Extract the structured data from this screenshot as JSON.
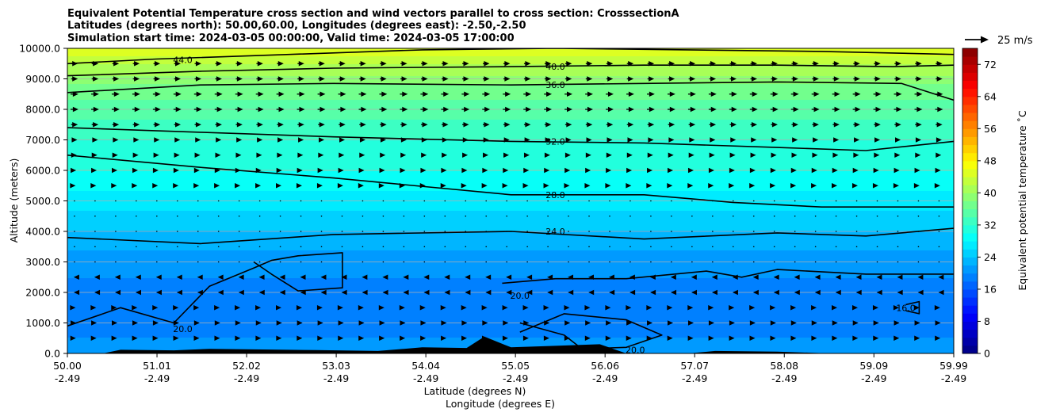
{
  "chart_data": {
    "type": "heatmap",
    "title_lines": [
      "Equivalent Potential Temperature cross section and wind vectors parallel to cross section: CrosssectionA",
      "Latitudes (degrees north): 50.00,60.00, Longitudes (degrees east): -2.50,-2.50",
      "Simulation start time: 2024-03-05 00:00:00, Valid time: 2024-03-05 17:00:00"
    ],
    "xlabel_line1": "Latitude (degrees N)",
    "xlabel_line2": "Longitude (degrees E)",
    "ylabel": "Altitude (meters)",
    "colorbar_label": "Equivalent potential temperature ˚C",
    "quiver_key_label": "25 m/s",
    "x_ticks": [
      {
        "lat": "50.00",
        "lon": "-2.49"
      },
      {
        "lat": "51.01",
        "lon": "-2.49"
      },
      {
        "lat": "52.02",
        "lon": "-2.49"
      },
      {
        "lat": "53.03",
        "lon": "-2.49"
      },
      {
        "lat": "54.04",
        "lon": "-2.49"
      },
      {
        "lat": "55.05",
        "lon": "-2.49"
      },
      {
        "lat": "56.06",
        "lon": "-2.49"
      },
      {
        "lat": "57.07",
        "lon": "-2.49"
      },
      {
        "lat": "58.08",
        "lon": "-2.49"
      },
      {
        "lat": "59.09",
        "lon": "-2.49"
      },
      {
        "lat": "59.99",
        "lon": "-2.49"
      }
    ],
    "x_tick_values": [
      50.0,
      51.01,
      52.02,
      53.03,
      54.04,
      55.05,
      56.06,
      57.07,
      58.08,
      59.09,
      59.99
    ],
    "xlim": [
      50.0,
      59.99
    ],
    "y_ticks": [
      "0.0",
      "1000.0",
      "2000.0",
      "3000.0",
      "4000.0",
      "5000.0",
      "6000.0",
      "7000.0",
      "8000.0",
      "9000.0",
      "10000.0"
    ],
    "ylim": [
      0,
      10000
    ],
    "grid": "horizontal",
    "colorbar_ticks": [
      "0",
      "8",
      "16",
      "24",
      "32",
      "40",
      "48",
      "56",
      "64",
      "72"
    ],
    "colorbar_range": [
      0,
      76
    ],
    "colorbar_step": 2,
    "colormap": "jet",
    "field_levels": [
      {
        "altitude": 10000,
        "theta_e": 46
      },
      {
        "altitude": 9500,
        "theta_e": 42
      },
      {
        "altitude": 8800,
        "theta_e": 38
      },
      {
        "altitude": 8000,
        "theta_e": 35
      },
      {
        "altitude": 7000,
        "theta_e": 32
      },
      {
        "altitude": 6000,
        "theta_e": 30
      },
      {
        "altitude": 5000,
        "theta_e": 27
      },
      {
        "altitude": 4000,
        "theta_e": 24
      },
      {
        "altitude": 3000,
        "theta_e": 21
      },
      {
        "altitude": 2000,
        "theta_e": 19
      },
      {
        "altitude": 1000,
        "theta_e": 19
      },
      {
        "altitude": 0,
        "theta_e": 21
      }
    ],
    "contours": [
      {
        "level": "44.0",
        "points": [
          [
            50.0,
            9500
          ],
          [
            51.0,
            9650
          ],
          [
            52.5,
            9800
          ],
          [
            54.0,
            9950
          ],
          [
            55.5,
            10000
          ],
          [
            57.0,
            9950
          ],
          [
            58.5,
            9900
          ],
          [
            59.99,
            9800
          ]
        ]
      },
      {
        "level": "40.0",
        "points": [
          [
            50.0,
            9100
          ],
          [
            51.5,
            9250
          ],
          [
            53.0,
            9350
          ],
          [
            55.0,
            9400
          ],
          [
            56.5,
            9450
          ],
          [
            58.0,
            9450
          ],
          [
            59.3,
            9400
          ],
          [
            59.99,
            9450
          ]
        ]
      },
      {
        "level": "36.0",
        "points": [
          [
            50.0,
            8550
          ],
          [
            51.5,
            8800
          ],
          [
            53.0,
            8850
          ],
          [
            55.0,
            8800
          ],
          [
            56.5,
            8850
          ],
          [
            58.0,
            8900
          ],
          [
            59.4,
            8850
          ],
          [
            59.99,
            8300
          ]
        ]
      },
      {
        "level": "32.0",
        "points": [
          [
            50.0,
            7400
          ],
          [
            51.5,
            7250
          ],
          [
            53.0,
            7100
          ],
          [
            55.0,
            6950
          ],
          [
            56.5,
            6900
          ],
          [
            58.0,
            6750
          ],
          [
            59.0,
            6650
          ],
          [
            59.99,
            6950
          ]
        ]
      },
      {
        "level": "28.0",
        "points": [
          [
            50.0,
            6500
          ],
          [
            51.5,
            6100
          ],
          [
            53.0,
            5750
          ],
          [
            55.0,
            5200
          ],
          [
            56.5,
            5200
          ],
          [
            57.5,
            4950
          ],
          [
            58.5,
            4800
          ],
          [
            59.99,
            4800
          ]
        ]
      },
      {
        "level": "24.0",
        "points": [
          [
            50.0,
            3800
          ],
          [
            51.5,
            3600
          ],
          [
            53.0,
            3900
          ],
          [
            55.0,
            4000
          ],
          [
            56.5,
            3750
          ],
          [
            58.0,
            3950
          ],
          [
            59.0,
            3850
          ],
          [
            59.99,
            4100
          ]
        ]
      },
      {
        "level": "20.0",
        "points": [
          [
            50.0,
            900
          ],
          [
            50.6,
            1500
          ],
          [
            51.2,
            1000
          ],
          [
            51.6,
            2200
          ],
          [
            52.1,
            2800
          ],
          [
            52.3,
            3050
          ],
          [
            52.6,
            3200
          ],
          [
            53.1,
            3300
          ],
          [
            53.1,
            2150
          ],
          [
            52.6,
            2050
          ],
          [
            52.3,
            2600
          ],
          [
            52.1,
            3000
          ]
        ]
      },
      {
        "level": "20.0",
        "points": [
          [
            54.9,
            2300
          ],
          [
            55.5,
            2450
          ],
          [
            56.3,
            2450
          ],
          [
            57.2,
            2700
          ],
          [
            57.6,
            2500
          ],
          [
            58.0,
            2750
          ],
          [
            59.0,
            2600
          ],
          [
            59.99,
            2600
          ]
        ]
      },
      {
        "level": "20.0",
        "points": [
          [
            55.1,
            700
          ],
          [
            55.6,
            1300
          ],
          [
            56.3,
            1100
          ],
          [
            56.7,
            600
          ],
          [
            56.3,
            200
          ],
          [
            55.8,
            150
          ],
          [
            55.6,
            600
          ],
          [
            55.1,
            1000
          ]
        ]
      },
      {
        "level": "16.0",
        "points": [
          [
            59.45,
            1600
          ],
          [
            59.6,
            1700
          ],
          [
            59.6,
            1300
          ],
          [
            59.45,
            1400
          ]
        ]
      }
    ],
    "contour_labels": [
      {
        "text": "44.0",
        "x": 51.3,
        "y": 9620
      },
      {
        "text": "40.0",
        "x": 55.5,
        "y": 9400
      },
      {
        "text": "36.0",
        "x": 55.5,
        "y": 8800
      },
      {
        "text": "32.0",
        "x": 55.5,
        "y": 6950
      },
      {
        "text": "28.0",
        "x": 55.5,
        "y": 5200
      },
      {
        "text": "24.0",
        "x": 55.5,
        "y": 4000
      },
      {
        "text": "20.0",
        "x": 51.3,
        "y": 800
      },
      {
        "text": "20.0",
        "x": 55.1,
        "y": 1900
      },
      {
        "text": "20.0",
        "x": 56.4,
        "y": 120
      },
      {
        "text": "16.0",
        "x": 59.45,
        "y": 1500
      }
    ],
    "terrain": [
      [
        50.0,
        0
      ],
      [
        50.4,
        0
      ],
      [
        50.6,
        120
      ],
      [
        51.2,
        100
      ],
      [
        51.6,
        150
      ],
      [
        52.2,
        130
      ],
      [
        52.8,
        110
      ],
      [
        53.5,
        80
      ],
      [
        54.0,
        200
      ],
      [
        54.5,
        180
      ],
      [
        54.7,
        550
      ],
      [
        55.0,
        200
      ],
      [
        55.5,
        250
      ],
      [
        56.0,
        300
      ],
      [
        56.3,
        0
      ],
      [
        57.0,
        0
      ],
      [
        57.3,
        80
      ],
      [
        58.0,
        60
      ],
      [
        58.6,
        0
      ],
      [
        59.99,
        0
      ]
    ],
    "wind_field": {
      "x_spacing": 0.232,
      "altitudes": [
        9500,
        9000,
        8500,
        8000,
        7500,
        7000,
        6500,
        6000,
        5500,
        5000,
        4500,
        4000,
        3500,
        3000,
        2500,
        2000,
        1500,
        1000,
        500
      ],
      "u_ms": [
        6,
        6,
        7,
        7,
        6,
        5,
        4,
        3,
        2,
        1,
        1,
        0.8,
        0.8,
        1,
        -1.5,
        -1.2,
        2,
        3,
        2.5
      ]
    }
  }
}
